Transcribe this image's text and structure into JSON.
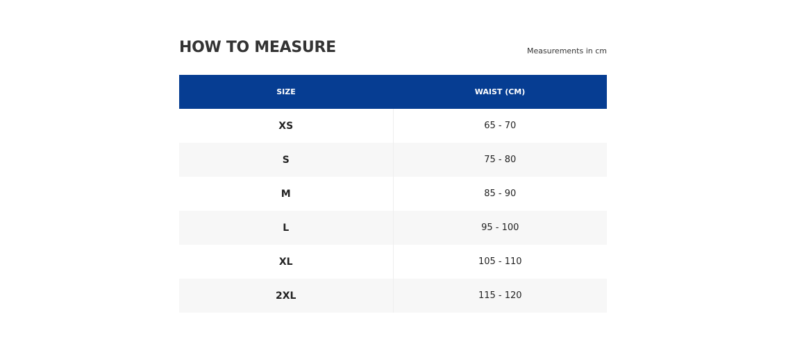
{
  "header": {
    "title": "HOW TO MEASURE",
    "note": "Measurements in cm"
  },
  "table": {
    "columns": [
      "SIZE",
      "WAIST (CM)"
    ],
    "rows": [
      [
        "XS",
        "65 - 70"
      ],
      [
        "S",
        "75 - 80"
      ],
      [
        "M",
        "85 - 90"
      ],
      [
        "L",
        "95 - 100"
      ],
      [
        "XL",
        "105 - 110"
      ],
      [
        "2XL",
        "115 - 120"
      ]
    ]
  }
}
